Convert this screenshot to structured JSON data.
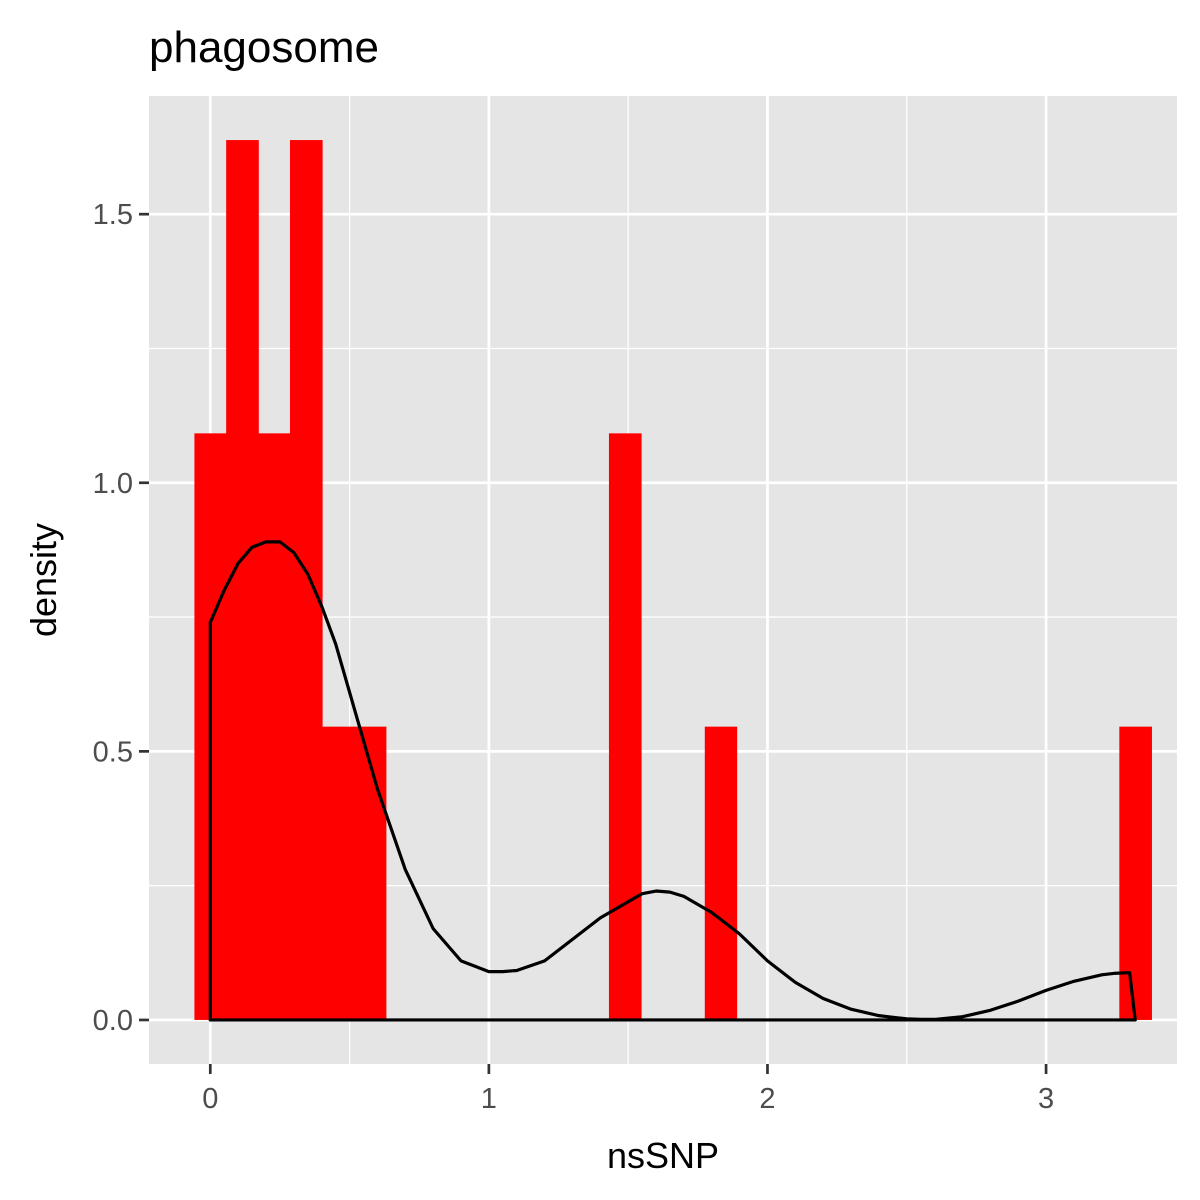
{
  "chart_data": {
    "type": "bar",
    "subtype": "histogram-with-density",
    "title": "phagosome",
    "xlabel": "nsSNP",
    "ylabel": "density",
    "xlim": [
      -0.22,
      3.47
    ],
    "ylim": [
      -0.082,
      1.72
    ],
    "x_ticks": [
      0,
      1,
      2,
      3
    ],
    "y_ticks": [
      0.0,
      0.5,
      1.0,
      1.5
    ],
    "x_tick_labels": [
      "0",
      "1",
      "2",
      "3"
    ],
    "y_tick_labels": [
      "0.0",
      "0.5",
      "1.0",
      "1.5"
    ],
    "x_minor_gridlines": [
      0.5,
      1.5,
      2.5
    ],
    "y_minor_gridlines": [
      0.25,
      0.75,
      1.25
    ],
    "grid": true,
    "legend": "none",
    "bar_color": "#ff0000",
    "line_color": "#000000",
    "panel_background": "#e5e5e5",
    "histogram": {
      "bin_width": 0.1145,
      "bins": [
        {
          "x0": -0.057,
          "x1": 0.057,
          "density": 1.092
        },
        {
          "x0": 0.057,
          "x1": 0.172,
          "density": 1.638
        },
        {
          "x0": 0.172,
          "x1": 0.286,
          "density": 1.092
        },
        {
          "x0": 0.286,
          "x1": 0.401,
          "density": 1.638
        },
        {
          "x0": 0.401,
          "x1": 0.515,
          "density": 0.546
        },
        {
          "x0": 0.515,
          "x1": 0.63,
          "density": 0.546
        },
        {
          "x0": 1.431,
          "x1": 1.546,
          "density": 1.092
        },
        {
          "x0": 1.775,
          "x1": 1.889,
          "density": 0.546
        },
        {
          "x0": 3.263,
          "x1": 3.378,
          "density": 0.546
        }
      ]
    },
    "density_curve": {
      "x": [
        0.0,
        0.05,
        0.1,
        0.15,
        0.2,
        0.25,
        0.3,
        0.35,
        0.4,
        0.45,
        0.5,
        0.55,
        0.6,
        0.7,
        0.8,
        0.9,
        1.0,
        1.05,
        1.1,
        1.2,
        1.3,
        1.4,
        1.5,
        1.55,
        1.6,
        1.65,
        1.7,
        1.8,
        1.9,
        2.0,
        2.1,
        2.2,
        2.3,
        2.4,
        2.5,
        2.55,
        2.6,
        2.7,
        2.8,
        2.9,
        3.0,
        3.1,
        3.2,
        3.25,
        3.3
      ],
      "y": [
        0.74,
        0.8,
        0.85,
        0.88,
        0.89,
        0.89,
        0.87,
        0.83,
        0.77,
        0.7,
        0.61,
        0.52,
        0.43,
        0.28,
        0.17,
        0.11,
        0.09,
        0.09,
        0.092,
        0.11,
        0.15,
        0.19,
        0.22,
        0.235,
        0.24,
        0.238,
        0.23,
        0.2,
        0.16,
        0.11,
        0.07,
        0.04,
        0.02,
        0.008,
        0.002,
        0.001,
        0.001,
        0.006,
        0.018,
        0.035,
        0.055,
        0.072,
        0.084,
        0.087,
        0.088
      ],
      "x_start": 0.0,
      "x_end": 3.32
    }
  }
}
